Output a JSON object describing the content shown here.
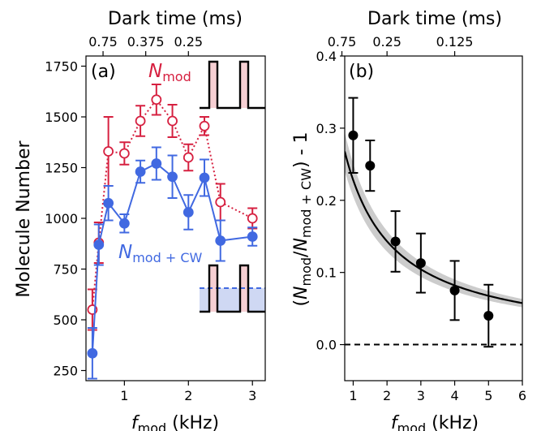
{
  "colors": {
    "red": "#d62040",
    "blue": "#4169e1",
    "band": "#cccccc",
    "sub_label": "#555555"
  },
  "chart_data": [
    {
      "panel": "(a)",
      "type": "line",
      "xlabel": "f_mod (kHz)",
      "xlabel_main": "f",
      "xlabel_sub": "mod",
      "xlabel_rest": " (kHz)",
      "ylabel": "Molecule Number",
      "top_xlabel": "Dark time (ms)",
      "xlim": [
        0.4,
        3.2
      ],
      "ylim": [
        200,
        1800
      ],
      "xticks": [
        1,
        2,
        3
      ],
      "yticks": [
        250,
        500,
        750,
        1000,
        1250,
        1500,
        1750
      ],
      "top_ticks": [
        {
          "label": "0.75",
          "at_freq": 0.667
        },
        {
          "label": "0.375",
          "at_freq": 1.333
        },
        {
          "label": "0.25",
          "at_freq": 2.0
        }
      ],
      "top_tick_freqs": [
        0.667,
        1.333,
        2.0
      ],
      "grid": false,
      "series": [
        {
          "name": "N_mod",
          "label_main": "N",
          "label_sub": "mod",
          "color": "red",
          "style": "dotted",
          "marker": "open-circle",
          "x": [
            0.5,
            0.6,
            0.75,
            1.0,
            1.25,
            1.5,
            1.75,
            2.0,
            2.25,
            2.5,
            3.0
          ],
          "y": [
            550,
            880,
            1330,
            1320,
            1480,
            1585,
            1480,
            1300,
            1455,
            1080,
            1000
          ],
          "err": [
            100,
            100,
            170,
            55,
            75,
            75,
            80,
            65,
            45,
            90,
            50
          ]
        },
        {
          "name": "N_mod + CW",
          "label_main": "N",
          "label_sub": "mod + CW",
          "color": "blue",
          "style": "solid",
          "marker": "filled-circle",
          "x": [
            0.5,
            0.6,
            0.75,
            1.0,
            1.25,
            1.5,
            1.75,
            2.0,
            2.25,
            2.5,
            3.0
          ],
          "y": [
            335,
            870,
            1075,
            975,
            1230,
            1270,
            1205,
            1030,
            1200,
            890,
            910
          ],
          "err": [
            125,
            100,
            85,
            45,
            55,
            80,
            105,
            85,
            90,
            100,
            45
          ]
        }
      ]
    },
    {
      "panel": "(b)",
      "type": "scatter",
      "xlabel": "f_mod (kHz)",
      "xlabel_main": "f",
      "xlabel_sub": "mod",
      "xlabel_rest": " (kHz)",
      "ylabel": "(N_mod/N_mod + CW) - 1",
      "ylabel_parts": [
        "(",
        "N",
        "mod",
        "/",
        "N",
        "mod + CW",
        ") - 1"
      ],
      "top_xlabel": "Dark time (ms)",
      "xlim": [
        0.75,
        6.0
      ],
      "ylim": [
        -0.05,
        0.4
      ],
      "xticks": [
        1,
        2,
        3,
        4,
        5,
        6
      ],
      "yticks": [
        0.0,
        0.1,
        0.2,
        0.3,
        0.4
      ],
      "ytick_labels": [
        "0.0",
        "0.1",
        "0.2",
        "0.3",
        "0.4"
      ],
      "top_ticks": [
        {
          "label": "0.75",
          "at_freq": 0.667
        },
        {
          "label": "0.25",
          "at_freq": 2.0
        },
        {
          "label": "0.125",
          "at_freq": 4.0
        }
      ],
      "top_tick_freqs": [
        0.667,
        2.0,
        4.0
      ],
      "grid": false,
      "points": {
        "x": [
          1.0,
          1.5,
          2.25,
          3.0,
          4.0,
          5.0
        ],
        "y": [
          0.29,
          0.248,
          0.143,
          0.113,
          0.075,
          0.04
        ],
        "err": [
          0.052,
          0.035,
          0.042,
          0.041,
          0.041,
          0.043
        ]
      },
      "fit": {
        "type": "hyperbolic",
        "model": "y = A / (1 + x/B)",
        "params": {
          "A": 0.56,
          "B": 0.687
        },
        "band_halfwidth_frac": 0.1
      },
      "zero_line": {
        "y": 0.0,
        "style": "dashed"
      }
    }
  ]
}
